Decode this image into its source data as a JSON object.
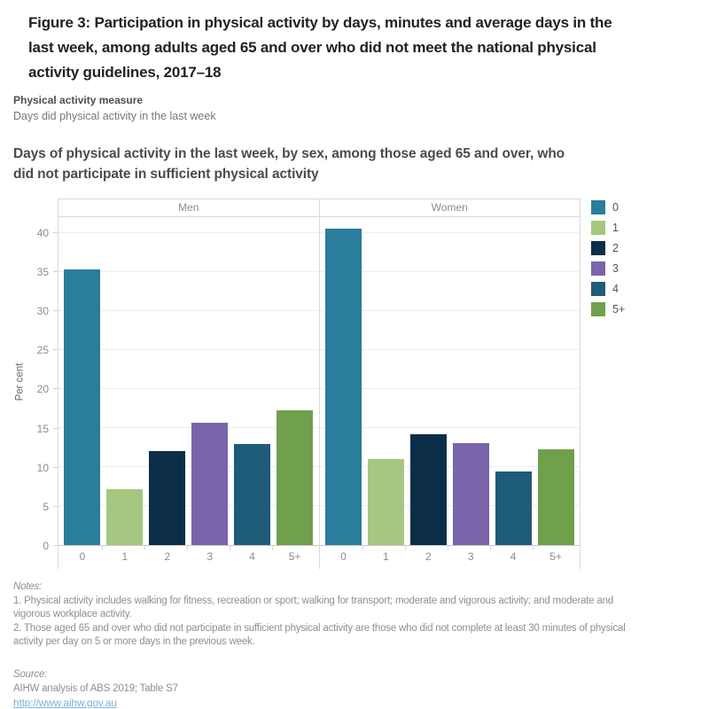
{
  "figure": {
    "title": "Figure 3: Participation in physical activity by days, minutes and average days in the\nlast week, among adults aged 65 and over who did not meet the national physical\nactivity guidelines, 2017–18"
  },
  "measure": {
    "label": "Physical activity measure",
    "value": "Days did physical activity in the last week"
  },
  "chart_data": {
    "type": "bar",
    "title": "Days of physical activity in the last week, by sex, among those aged 65 and over, who\ndid not participate in sufficient physical activity",
    "ylabel": "Per cent",
    "ylim": [
      0,
      42
    ],
    "yticks": [
      0,
      5,
      10,
      15,
      20,
      25,
      30,
      35,
      40
    ],
    "grid": true,
    "categories": [
      "0",
      "1",
      "2",
      "3",
      "4",
      "5+"
    ],
    "panels": [
      "Men",
      "Women"
    ],
    "series": [
      {
        "name": "Men",
        "values": [
          35.3,
          7.2,
          12.0,
          15.7,
          12.9,
          17.3
        ]
      },
      {
        "name": "Women",
        "values": [
          40.5,
          11.0,
          14.2,
          13.1,
          9.4,
          12.3
        ]
      }
    ],
    "colors": {
      "0": "#2a7d9c",
      "1": "#a5c77f",
      "2": "#0c2d48",
      "3": "#7a64aa",
      "4": "#1e5c7a",
      "5+": "#70a04b"
    },
    "legend": {
      "position": "top-right",
      "items": [
        "0",
        "1",
        "2",
        "3",
        "4",
        "5+"
      ]
    }
  },
  "notes": {
    "label": "Notes:",
    "items": [
      "1. Physical activity includes walking for fitness, recreation or sport; walking for transport; moderate and vigorous activity; and moderate and\nvigorous workplace activity.",
      "2. Those aged 65 and over who did not participate in sufficient physical activity are those who did not complete at least 30 minutes of physical\nactivity per day on 5 or more days in the previous week."
    ]
  },
  "source": {
    "label": "Source:",
    "text": "AIHW analysis of ABS 2019; Table S7",
    "link": "http://www.aihw.gov.au"
  }
}
